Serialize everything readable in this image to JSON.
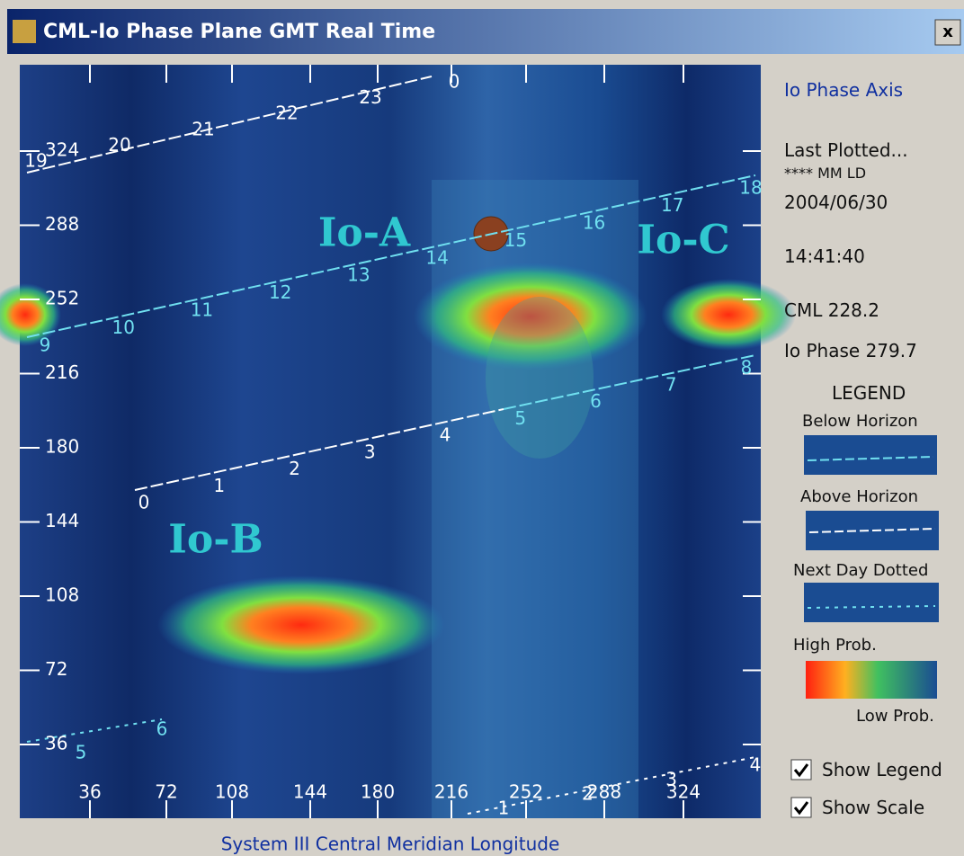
{
  "window": {
    "title": "CML-Io Phase Plane GMT Real Time",
    "close": "x"
  },
  "plot": {
    "x_axis_label": "System III Central Meridian Longitude",
    "x_ticks": [
      "36",
      "72",
      "108",
      "144",
      "180",
      "216",
      "252",
      "288",
      "324"
    ],
    "y_ticks": [
      "324",
      "288",
      "252",
      "216",
      "180",
      "144",
      "108",
      "72",
      "36"
    ],
    "region_labels": [
      "Io-A",
      "Io-B",
      "Io-C"
    ],
    "hour_lines": [
      {
        "labels": [
          "19",
          "20",
          "21",
          "22",
          "23",
          "0"
        ]
      },
      {
        "labels": [
          "9",
          "10",
          "11",
          "12",
          "13",
          "14",
          "15",
          "16",
          "17",
          "18"
        ]
      },
      {
        "labels": [
          "0",
          "1",
          "2",
          "3",
          "4",
          "5",
          "6",
          "7",
          "8"
        ]
      },
      {
        "labels": [
          "5",
          "6"
        ]
      },
      {
        "labels": [
          "1",
          "2",
          "3",
          "4"
        ]
      }
    ]
  },
  "panel": {
    "axis_title": "Io Phase Axis",
    "last_plotted": "Last Plotted...",
    "source": "**** MM LD",
    "date": "2004/06/30",
    "time": "14:41:40",
    "cml": "CML 228.2",
    "io_phase": "Io Phase 279.7",
    "legend_title": "LEGEND",
    "below_horizon": "Below Horizon",
    "above_horizon": "Above Horizon",
    "next_day": "Next Day Dotted",
    "high_prob": "High Prob.",
    "low_prob": "Low Prob.",
    "show_legend": "Show Legend",
    "show_scale": "Show Scale"
  }
}
